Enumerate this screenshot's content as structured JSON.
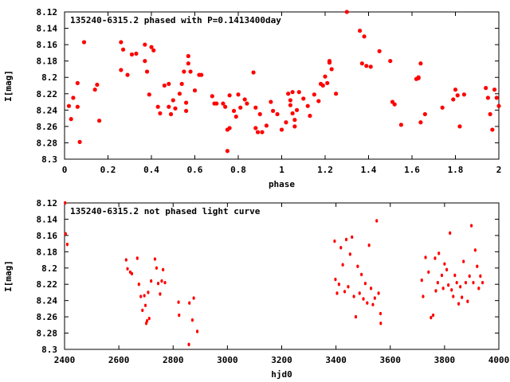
{
  "chart_data": [
    {
      "type": "scatter",
      "title": "135240-6315.2 phased with P=0.1413400day",
      "xlabel": "phase",
      "ylabel": "I[mag]",
      "xlim": [
        0,
        2
      ],
      "ylim": [
        8.3,
        8.12
      ],
      "y_inverted": true,
      "xticks": [
        "0",
        "0.2",
        "0.4",
        "0.6",
        "0.8",
        "1",
        "1.2",
        "1.4",
        "1.6",
        "1.8",
        "2"
      ],
      "yticks": [
        "8.12",
        "8.14",
        "8.16",
        "8.18",
        "8.2",
        "8.22",
        "8.24",
        "8.26",
        "8.28",
        "8.3"
      ],
      "grid": false,
      "marker_color": "#ff0000",
      "series": [
        {
          "x": [
            0.02,
            0.03,
            0.04,
            0.06,
            0.06,
            0.07,
            0.09,
            0.14,
            0.15,
            0.16,
            0.26,
            0.26,
            0.27,
            0.29,
            0.31,
            0.33,
            0.37,
            0.37,
            0.38,
            0.39,
            0.4,
            0.41,
            0.43,
            0.44,
            0.46,
            0.48,
            0.48,
            0.49,
            0.5,
            0.51,
            0.53,
            0.54,
            0.55,
            0.56,
            0.56,
            0.57,
            0.57,
            0.58,
            0.6,
            0.62,
            0.63,
            0.68,
            0.69,
            0.7,
            0.73,
            0.74,
            0.75,
            0.75,
            0.76,
            0.76,
            0.78,
            0.79,
            0.8,
            0.81,
            0.83,
            0.84,
            0.87,
            0.88,
            0.88,
            0.89,
            0.9,
            0.91,
            0.93,
            0.95,
            0.96,
            0.98,
            1.0,
            1.02,
            1.03,
            1.04,
            1.04,
            1.05,
            1.05,
            1.06,
            1.06,
            1.07,
            1.08,
            1.1,
            1.12,
            1.13,
            1.15,
            1.17,
            1.18,
            1.19,
            1.2,
            1.21,
            1.22,
            1.22,
            1.23,
            1.25,
            1.3,
            1.36,
            1.37,
            1.38,
            1.39,
            1.41,
            1.45,
            1.5,
            1.51,
            1.52,
            1.55,
            1.62,
            1.63,
            1.63,
            1.64,
            1.64,
            1.66,
            1.74,
            1.79,
            1.8,
            1.81,
            1.82,
            1.84,
            1.94,
            1.95,
            1.96,
            1.97,
            1.98,
            1.99,
            2.0
          ],
          "y": [
            8.235,
            8.251,
            8.225,
            8.207,
            8.236,
            8.279,
            8.157,
            8.215,
            8.209,
            8.253,
            8.191,
            8.157,
            8.166,
            8.197,
            8.172,
            8.171,
            8.16,
            8.18,
            8.193,
            8.221,
            8.163,
            8.167,
            8.236,
            8.244,
            8.21,
            8.208,
            8.236,
            8.245,
            8.228,
            8.238,
            8.22,
            8.208,
            8.193,
            8.231,
            8.241,
            8.174,
            8.183,
            8.193,
            8.216,
            8.197,
            8.197,
            8.223,
            8.232,
            8.232,
            8.232,
            8.236,
            8.264,
            8.29,
            8.262,
            8.222,
            8.241,
            8.248,
            8.221,
            8.237,
            8.227,
            8.232,
            8.194,
            8.237,
            8.262,
            8.267,
            8.245,
            8.267,
            8.259,
            8.23,
            8.241,
            8.245,
            8.264,
            8.255,
            8.22,
            8.228,
            8.234,
            8.244,
            8.218,
            8.252,
            8.26,
            8.24,
            8.218,
            8.226,
            8.235,
            8.247,
            8.221,
            8.229,
            8.208,
            8.21,
            8.199,
            8.207,
            8.182,
            8.18,
            8.19,
            8.22,
            8.12,
            8.143,
            8.183,
            8.15,
            8.186,
            8.187,
            8.168,
            8.18,
            8.23,
            8.233,
            8.258,
            8.202,
            8.2,
            8.201,
            8.183,
            8.255,
            8.245,
            8.237,
            8.227,
            8.215,
            8.222,
            8.26,
            8.221,
            8.213,
            8.225,
            8.245,
            8.264,
            8.215,
            8.225,
            8.235
          ]
        }
      ]
    },
    {
      "type": "scatter",
      "title": "135240-6315.2 not phased light curve",
      "xlabel": "hjd0",
      "ylabel": "I[mag]",
      "xlim": [
        2400,
        4000
      ],
      "ylim": [
        8.3,
        8.12
      ],
      "y_inverted": true,
      "xticks": [
        "2400",
        "2600",
        "2800",
        "3000",
        "3200",
        "3400",
        "3600",
        "3800",
        "4000"
      ],
      "yticks": [
        "8.12",
        "8.14",
        "8.16",
        "8.18",
        "8.2",
        "8.22",
        "8.24",
        "8.26",
        "8.28",
        "8.3"
      ],
      "grid": false,
      "marker_color": "#ff0000",
      "series": [
        {
          "x": [
            2402,
            2404,
            2410,
            2627,
            2632,
            2642,
            2648,
            2668,
            2674,
            2681,
            2687,
            2694,
            2698,
            2701,
            2704,
            2708,
            2712,
            2719,
            2733,
            2739,
            2745,
            2752,
            2758,
            2763,
            2770,
            2820,
            2822,
            2858,
            2860,
            2871,
            2876,
            2889,
            3395,
            3398,
            3404,
            3411,
            3418,
            3425,
            3432,
            3438,
            3445,
            3452,
            3459,
            3466,
            3473,
            3480,
            3487,
            3494,
            3501,
            3508,
            3515,
            3522,
            3529,
            3536,
            3543,
            3550,
            3557,
            3564,
            3565,
            3716,
            3721,
            3730,
            3741,
            3750,
            3758,
            3765,
            3768,
            3775,
            3779,
            3790,
            3795,
            3800,
            3808,
            3814,
            3820,
            3826,
            3832,
            3838,
            3845,
            3852,
            3858,
            3864,
            3870,
            3878,
            3885,
            3892,
            3899,
            3906,
            3913,
            3920,
            3926,
            3932,
            3940
          ],
          "y": [
            8.12,
            8.158,
            8.171,
            8.19,
            8.201,
            8.205,
            8.207,
            8.188,
            8.22,
            8.235,
            8.252,
            8.234,
            8.246,
            8.268,
            8.265,
            8.23,
            8.262,
            8.216,
            8.189,
            8.2,
            8.219,
            8.232,
            8.216,
            8.202,
            8.218,
            8.242,
            8.258,
            8.294,
            8.243,
            8.264,
            8.237,
            8.278,
            8.167,
            8.214,
            8.231,
            8.22,
            8.175,
            8.196,
            8.229,
            8.165,
            8.223,
            8.183,
            8.162,
            8.235,
            8.26,
            8.198,
            8.231,
            8.208,
            8.238,
            8.219,
            8.243,
            8.172,
            8.225,
            8.245,
            8.237,
            8.142,
            8.231,
            8.256,
            8.268,
            8.215,
            8.235,
            8.187,
            8.205,
            8.261,
            8.258,
            8.188,
            8.228,
            8.218,
            8.182,
            8.209,
            8.225,
            8.195,
            8.202,
            8.221,
            8.157,
            8.227,
            8.235,
            8.209,
            8.218,
            8.244,
            8.223,
            8.236,
            8.192,
            8.218,
            8.241,
            8.21,
            8.148,
            8.218,
            8.178,
            8.198,
            8.225,
            8.21,
            8.218
          ]
        }
      ]
    }
  ]
}
